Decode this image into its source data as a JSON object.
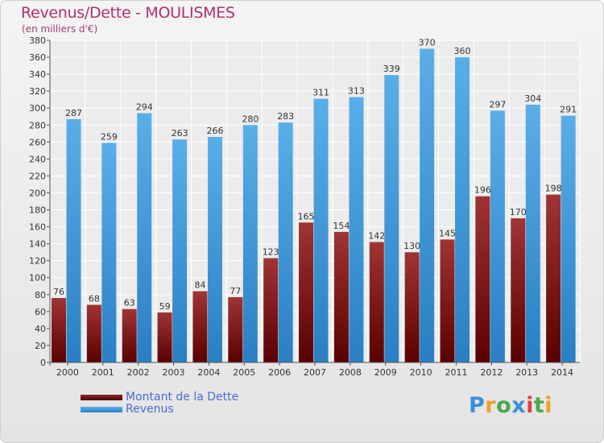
{
  "header": {
    "title": "Revenus/Dette - MOULISMES",
    "subtitle": "(en milliers d'€)"
  },
  "legend": {
    "debt_label": "Montant de la Dette",
    "revenue_label": "Revenus"
  },
  "logo": {
    "text": "Proxiti"
  },
  "colors": {
    "debt": "#8b2222",
    "revenue": "#3a96dc",
    "title": "#b0306c"
  },
  "chart_data": {
    "type": "bar",
    "title": "Revenus/Dette - MOULISMES",
    "ylabel": "(en milliers d'€)",
    "ylim": [
      0,
      380
    ],
    "y_ticks": [
      0,
      20,
      40,
      60,
      80,
      100,
      120,
      140,
      160,
      180,
      200,
      220,
      240,
      260,
      280,
      300,
      320,
      340,
      360,
      380
    ],
    "categories": [
      "2000",
      "2001",
      "2002",
      "2003",
      "2004",
      "2005",
      "2006",
      "2007",
      "2008",
      "2009",
      "2010",
      "2011",
      "2012",
      "2013",
      "2014"
    ],
    "series": [
      {
        "name": "Montant de la Dette",
        "values": [
          76,
          68,
          63,
          59,
          84,
          77,
          123,
          165,
          154,
          142,
          130,
          145,
          196,
          170,
          198
        ]
      },
      {
        "name": "Revenus",
        "values": [
          287,
          259,
          294,
          263,
          266,
          280,
          283,
          311,
          313,
          339,
          370,
          360,
          297,
          304,
          291
        ]
      }
    ],
    "legend_position": "bottom-left",
    "grid": true
  }
}
